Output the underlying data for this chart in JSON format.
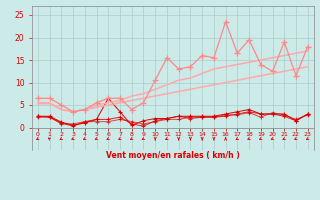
{
  "x": [
    0,
    1,
    2,
    3,
    4,
    5,
    6,
    7,
    8,
    9,
    10,
    11,
    12,
    13,
    14,
    15,
    16,
    17,
    18,
    19,
    20,
    21,
    22,
    23
  ],
  "line_flat1": [
    2.5,
    2.5,
    1.2,
    0.5,
    1.0,
    1.8,
    6.5,
    3.5,
    0.5,
    1.5,
    2.0,
    2.0,
    2.5,
    2.5,
    2.5,
    2.5,
    3.0,
    3.5,
    4.0,
    3.0,
    3.0,
    3.0,
    1.5,
    3.0
  ],
  "line_flat2": [
    2.5,
    2.3,
    1.0,
    0.3,
    1.3,
    1.8,
    1.8,
    2.3,
    0.8,
    0.3,
    1.5,
    2.0,
    2.5,
    2.0,
    2.3,
    2.3,
    2.5,
    3.0,
    3.5,
    3.0,
    3.0,
    2.5,
    1.5,
    3.0
  ],
  "line_flat3": [
    2.3,
    2.3,
    0.8,
    0.8,
    1.3,
    1.3,
    1.3,
    1.8,
    1.3,
    0.8,
    1.3,
    1.8,
    1.8,
    2.3,
    2.3,
    2.3,
    2.8,
    2.8,
    3.3,
    2.3,
    3.3,
    2.8,
    1.8,
    2.8
  ],
  "line_slope1": [
    5.3,
    5.3,
    4.0,
    3.5,
    4.0,
    4.5,
    5.0,
    5.5,
    6.0,
    6.5,
    7.0,
    7.5,
    8.0,
    8.5,
    9.0,
    9.5,
    10.0,
    10.5,
    11.0,
    11.5,
    12.0,
    12.5,
    13.0,
    13.5
  ],
  "line_slope2": [
    5.5,
    5.5,
    4.0,
    3.5,
    4.0,
    5.0,
    5.5,
    6.0,
    7.0,
    7.5,
    8.5,
    9.5,
    10.5,
    11.0,
    12.0,
    13.0,
    13.5,
    14.0,
    14.5,
    15.0,
    15.5,
    16.0,
    16.5,
    17.0
  ],
  "line_zigzag": [
    6.5,
    6.5,
    5.0,
    3.5,
    4.0,
    5.5,
    6.5,
    6.5,
    4.0,
    5.5,
    10.5,
    15.5,
    13.0,
    13.5,
    16.0,
    15.5,
    23.5,
    16.5,
    19.5,
    14.0,
    12.5,
    19.0,
    11.5,
    18.0
  ],
  "bg_color": "#cceae8",
  "grid_color": "#aacccc",
  "color_dark_red": "#dd0000",
  "color_light_pink": "#ffaaaa",
  "color_med_pink": "#ff8888",
  "xlabel": "Vent moyen/en rafales ( km/h )",
  "ylim": [
    -5,
    27
  ],
  "xlim": [
    -0.5,
    23.5
  ],
  "yticks": [
    0,
    5,
    10,
    15,
    20,
    25
  ],
  "xticks": [
    0,
    1,
    2,
    3,
    4,
    5,
    6,
    7,
    8,
    9,
    10,
    11,
    12,
    13,
    14,
    15,
    16,
    17,
    18,
    19,
    20,
    21,
    22,
    23
  ],
  "arrow_angles": [
    225,
    135,
    225,
    225,
    225,
    225,
    225,
    225,
    225,
    225,
    270,
    225,
    270,
    270,
    270,
    270,
    90,
    225,
    225,
    225,
    225,
    225,
    225,
    225
  ]
}
